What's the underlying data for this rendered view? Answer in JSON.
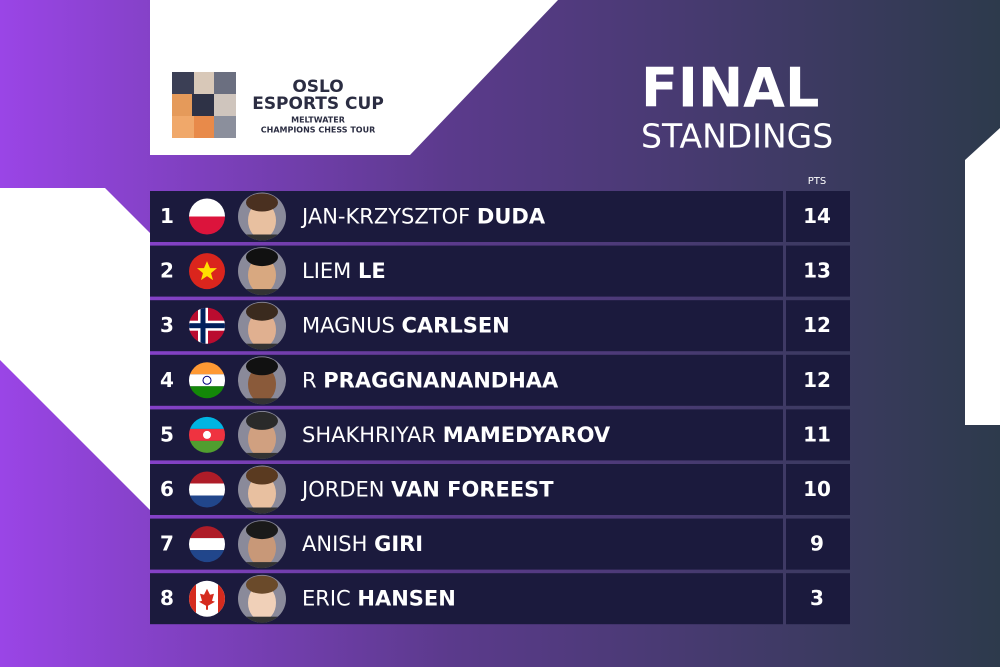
{
  "header": {
    "logo_lines": [
      "OSLO",
      "ESPORTS CUP",
      "MELTWATER",
      "CHAMPIONS CHESS TOUR"
    ],
    "title": "FINAL",
    "subtitle": "STANDINGS",
    "points_header": "PTS"
  },
  "table": {
    "rows": [
      {
        "rank": 1,
        "first": "JAN-KRZYSZTOF",
        "last": "DUDA",
        "points": 14
      },
      {
        "rank": 2,
        "first": "LIEM",
        "last": "LE",
        "points": 13
      },
      {
        "rank": 3,
        "first": "MAGNUS",
        "last": "CARLSEN",
        "points": 12
      },
      {
        "rank": 4,
        "first": "R",
        "last": "PRAGGNANANDHAA",
        "points": 12
      },
      {
        "rank": 5,
        "first": "SHAKHRIYAR",
        "last": "MAMEDYAROV",
        "points": 11
      },
      {
        "rank": 6,
        "first": "JORDEN",
        "last": "VAN FOREEST",
        "points": 10
      },
      {
        "rank": 7,
        "first": "ANISH",
        "last": "GIRI",
        "points": 9
      },
      {
        "rank": 8,
        "first": "ERIC",
        "last": "HANSEN",
        "points": 3
      }
    ]
  }
}
